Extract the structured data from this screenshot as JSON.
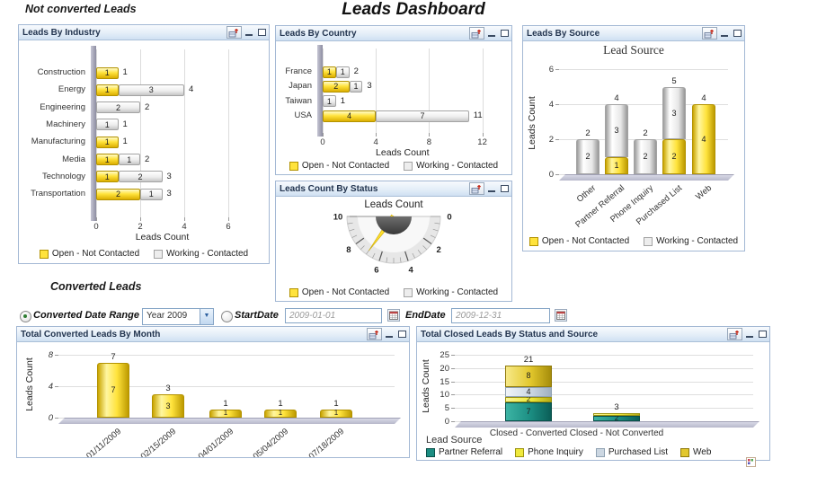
{
  "page": {
    "section1_title": "Not converted Leads",
    "main_title": "Leads Dashboard",
    "section2_title": "Converted Leads"
  },
  "legend": {
    "open": "Open - Not Contacted",
    "working": "Working - Contacted"
  },
  "filters": {
    "date_range_label": "Converted Date Range",
    "date_range_value": "Year 2009",
    "start_date_label": "StartDate",
    "start_date_value": "2009-01-01",
    "end_date_label": "EndDate",
    "end_date_value": "2009-12-31"
  },
  "colors": {
    "open": "#ffe33c",
    "working": "#ededed",
    "partner": "#1b8d82",
    "phone": "#efe93c",
    "purchased": "#ccd7e2",
    "web": "#e2c72c"
  },
  "chart_data": [
    {
      "panel_title": "Leads By Industry",
      "type": "bar-horizontal-stacked",
      "categories": [
        "Construction",
        "Energy",
        "Engineering",
        "Machinery",
        "Manufacturing",
        "Media",
        "Technology",
        "Transportation"
      ],
      "series": [
        {
          "name": "Open - Not Contacted",
          "color": "open",
          "values": [
            1,
            1,
            0,
            0,
            1,
            1,
            1,
            2
          ]
        },
        {
          "name": "Working - Contacted",
          "color": "working",
          "values": [
            0,
            3,
            2,
            1,
            0,
            1,
            2,
            1
          ]
        }
      ],
      "totals": [
        1,
        4,
        2,
        1,
        1,
        2,
        3,
        3
      ],
      "xlabel": "Leads Count",
      "xticks": [
        0,
        2,
        4,
        6
      ],
      "xmax": 7,
      "legend_position": "bottom"
    },
    {
      "panel_title": "Leads By Country",
      "type": "bar-horizontal-stacked",
      "categories": [
        "France",
        "Japan",
        "Taiwan",
        "USA"
      ],
      "series": [
        {
          "name": "Open - Not Contacted",
          "color": "open",
          "values": [
            1,
            2,
            0,
            4
          ]
        },
        {
          "name": "Working - Contacted",
          "color": "working",
          "values": [
            1,
            1,
            1,
            7
          ]
        }
      ],
      "totals": [
        2,
        3,
        1,
        11
      ],
      "xlabel": "Leads Count",
      "xticks": [
        0,
        4,
        8,
        12
      ],
      "xmax": 13,
      "legend_position": "bottom"
    },
    {
      "panel_title": "Leads Count By Status",
      "type": "gauge",
      "title": "Leads Count",
      "min": 0,
      "max": 10,
      "major_ticks": [
        0,
        2,
        4,
        6,
        8,
        10
      ],
      "needles": [
        {
          "name": "Open - Not Contacted",
          "color": "open",
          "value": 7
        },
        {
          "name": "Working - Contacted",
          "color": "working",
          "value": 10
        }
      ],
      "legend_position": "bottom"
    },
    {
      "panel_title": "Leads By Source",
      "type": "bar-vertical-stacked",
      "title": "Lead Source",
      "categories": [
        "Other",
        "Partner Referral",
        "Phone Inquiry",
        "Purchased List",
        "Web"
      ],
      "series": [
        {
          "name": "Open - Not Contacted",
          "color": "open",
          "values": [
            0,
            1,
            0,
            2,
            4
          ]
        },
        {
          "name": "Working - Contacted",
          "color": "working",
          "values": [
            2,
            3,
            2,
            3,
            0
          ]
        }
      ],
      "totals": [
        2,
        4,
        2,
        5,
        4
      ],
      "ylabel": "Leads Count",
      "yticks": [
        0,
        2,
        4,
        6
      ],
      "ymax": 6,
      "legend_position": "bottom"
    },
    {
      "panel_title": "Total Converted Leads By Month",
      "type": "bar",
      "categories": [
        "01/11/2009",
        "02/15/2009",
        "04/01/2009",
        "05/04/2009",
        "07/18/2009"
      ],
      "series": [
        {
          "name": "Converted Leads",
          "color": "open",
          "values": [
            7,
            3,
            1,
            1,
            1
          ]
        }
      ],
      "totals": [
        7,
        3,
        1,
        1,
        1
      ],
      "ylabel": "Leads Count",
      "yticks": [
        0,
        4,
        8
      ],
      "ymax": 8
    },
    {
      "panel_title": "Total Closed Leads By Status and Source",
      "type": "bar-vertical-stacked",
      "legend_title": "Lead Source",
      "categories": [
        "Closed - Converted",
        "Closed - Not Converted"
      ],
      "series": [
        {
          "name": "Partner Referral",
          "color": "partner",
          "values": [
            7,
            2
          ]
        },
        {
          "name": "Phone Inquiry",
          "color": "phone",
          "values": [
            2,
            1
          ]
        },
        {
          "name": "Purchased List",
          "color": "purchased",
          "values": [
            4,
            0
          ]
        },
        {
          "name": "Web",
          "color": "web",
          "values": [
            8,
            0
          ]
        }
      ],
      "totals": [
        21,
        3
      ],
      "ylabel": "Leads Count",
      "yticks": [
        0,
        5,
        10,
        15,
        20,
        25
      ],
      "ymax": 25,
      "legend_position": "bottom-left"
    }
  ]
}
